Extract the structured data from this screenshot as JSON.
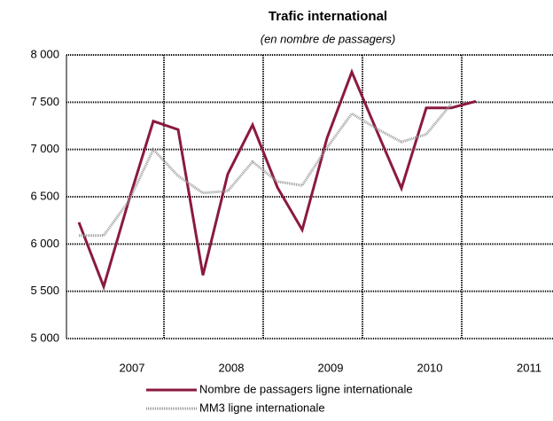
{
  "chart_data": {
    "type": "line",
    "title": "Trafic international",
    "subtitle": "(en nombre de passagers)",
    "categories": [
      null,
      null,
      "2007",
      null,
      null,
      null,
      "2008",
      null,
      null,
      null,
      "2009",
      null,
      null,
      null,
      "2010",
      null,
      null,
      null,
      "2011",
      null
    ],
    "series": [
      {
        "name": "Nombre de passagers ligne internationale",
        "color": "#8b1a3f",
        "style": "solid",
        "values": [
          6230,
          5550,
          6450,
          7300,
          7210,
          5670,
          6740,
          7260,
          6600,
          6150,
          7120,
          7820,
          7200,
          6590,
          7440,
          7440,
          7510,
          null,
          null,
          null
        ]
      },
      {
        "name": "MM3 ligne internationale",
        "color": "#999999",
        "style": "dotted",
        "values": [
          6090,
          6090,
          6450,
          7000,
          6720,
          6540,
          6560,
          6870,
          6660,
          6620,
          7020,
          7380,
          7220,
          7080,
          7160,
          7480,
          null,
          null,
          null,
          null
        ]
      }
    ],
    "ylim": [
      5000,
      8000
    ],
    "yticks": [
      {
        "value": 5000,
        "label": "5 000"
      },
      {
        "value": 5500,
        "label": "5 500"
      },
      {
        "value": 6000,
        "label": "6 000"
      },
      {
        "value": 6500,
        "label": "6 500"
      },
      {
        "value": 7000,
        "label": "7 000"
      },
      {
        "value": 7500,
        "label": "7 500"
      },
      {
        "value": 8000,
        "label": "8 000"
      }
    ],
    "grid": true
  }
}
